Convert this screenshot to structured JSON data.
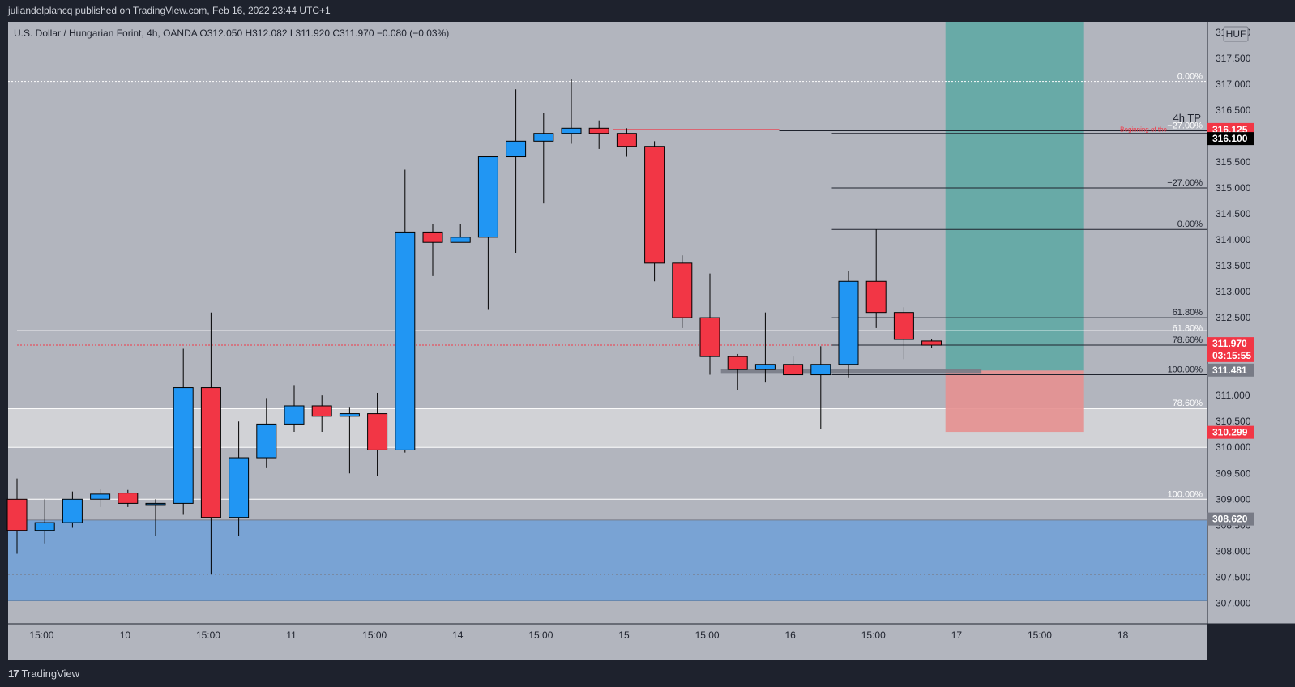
{
  "header": {
    "publisher_line": "juliandelplancq published on TradingView.com, Feb 16, 2022 23:44 UTC+1",
    "symbol_line": "U.S. Dollar / Hungarian Forint, 4h, OANDA  O312.050  H312.082  L311.920  C311.970  −0.080 (−0.03%)",
    "currency_label": "HUF"
  },
  "footer": {
    "logo_mark": "17",
    "brand": "TradingView"
  },
  "colors": {
    "background": "#b2b5be",
    "up": "#2196f3",
    "down": "#f23645",
    "frame": "#1e222d"
  },
  "chart_data": {
    "type": "candlestick",
    "symbol": "U.S. Dollar / Hungarian Forint",
    "timeframe": "4h",
    "exchange": "OANDA",
    "ylim": [
      306.6,
      318.2
    ],
    "y_ticks": [
      307.0,
      307.5,
      308.0,
      308.5,
      309.0,
      309.5,
      310.0,
      310.5,
      311.0,
      311.5,
      312.0,
      312.5,
      313.0,
      313.5,
      314.0,
      314.5,
      315.0,
      315.5,
      316.0,
      316.5,
      317.0,
      317.5,
      318.0
    ],
    "x_ticks": [
      "15:00",
      "10",
      "15:00",
      "11",
      "15:00",
      "14",
      "15:00",
      "15",
      "15:00",
      "16",
      "15:00",
      "17",
      "15:00",
      "18"
    ],
    "x_tick_bar_index": [
      0.89,
      3.9,
      6.9,
      9.9,
      12.9,
      15.9,
      18.9,
      21.9,
      24.9,
      27.9,
      30.9,
      33.9,
      36.9,
      39.9
    ],
    "candles": [
      {
        "o": 309.0,
        "h": 309.4,
        "l": 307.95,
        "c": 308.4
      },
      {
        "o": 308.4,
        "h": 309.0,
        "l": 308.15,
        "c": 308.55
      },
      {
        "o": 308.55,
        "h": 309.15,
        "l": 308.45,
        "c": 309.0
      },
      {
        "o": 309.0,
        "h": 309.2,
        "l": 308.85,
        "c": 309.1
      },
      {
        "o": 309.12,
        "h": 309.18,
        "l": 308.85,
        "c": 308.92
      },
      {
        "o": 308.9,
        "h": 309.0,
        "l": 308.3,
        "c": 308.92
      },
      {
        "o": 308.92,
        "h": 311.9,
        "l": 308.7,
        "c": 311.15
      },
      {
        "o": 311.15,
        "h": 312.6,
        "l": 307.55,
        "c": 308.65
      },
      {
        "o": 308.65,
        "h": 310.5,
        "l": 308.3,
        "c": 309.8
      },
      {
        "o": 309.8,
        "h": 310.95,
        "l": 309.6,
        "c": 310.45
      },
      {
        "o": 310.45,
        "h": 311.2,
        "l": 310.3,
        "c": 310.8
      },
      {
        "o": 310.8,
        "h": 311.0,
        "l": 310.3,
        "c": 310.6
      },
      {
        "o": 310.6,
        "h": 310.78,
        "l": 309.5,
        "c": 310.65
      },
      {
        "o": 310.65,
        "h": 311.05,
        "l": 309.45,
        "c": 309.95
      },
      {
        "o": 309.95,
        "h": 315.35,
        "l": 309.9,
        "c": 314.15
      },
      {
        "o": 314.15,
        "h": 314.3,
        "l": 313.3,
        "c": 313.95
      },
      {
        "o": 313.95,
        "h": 314.3,
        "l": 313.95,
        "c": 314.05
      },
      {
        "o": 314.05,
        "h": 315.6,
        "l": 312.65,
        "c": 315.6
      },
      {
        "o": 315.6,
        "h": 316.9,
        "l": 313.75,
        "c": 315.9
      },
      {
        "o": 315.9,
        "h": 316.45,
        "l": 314.7,
        "c": 316.05
      },
      {
        "o": 316.05,
        "h": 317.1,
        "l": 315.85,
        "c": 316.15
      },
      {
        "o": 316.15,
        "h": 316.3,
        "l": 315.75,
        "c": 316.05
      },
      {
        "o": 316.05,
        "h": 316.15,
        "l": 315.6,
        "c": 315.8
      },
      {
        "o": 315.8,
        "h": 315.9,
        "l": 313.2,
        "c": 313.55
      },
      {
        "o": 313.55,
        "h": 313.7,
        "l": 312.3,
        "c": 312.5
      },
      {
        "o": 312.5,
        "h": 313.35,
        "l": 311.4,
        "c": 311.75
      },
      {
        "o": 311.75,
        "h": 311.8,
        "l": 311.1,
        "c": 311.5
      },
      {
        "o": 311.5,
        "h": 312.6,
        "l": 311.25,
        "c": 311.6
      },
      {
        "o": 311.6,
        "h": 311.75,
        "l": 311.4,
        "c": 311.4
      },
      {
        "o": 311.4,
        "h": 311.95,
        "l": 310.35,
        "c": 311.6
      },
      {
        "o": 311.6,
        "h": 313.4,
        "l": 311.35,
        "c": 313.2
      },
      {
        "o": 313.2,
        "h": 314.2,
        "l": 312.3,
        "c": 312.6
      },
      {
        "o": 312.6,
        "h": 312.7,
        "l": 311.7,
        "c": 312.08
      },
      {
        "o": 312.05,
        "h": 312.082,
        "l": 311.92,
        "c": 311.97
      }
    ],
    "price_scale_labels": [
      {
        "text": "316.125",
        "price": 316.125,
        "bg": "#f23645",
        "fg": "#ffffff"
      },
      {
        "text": "316.100",
        "price": 315.95,
        "bg": "#000000",
        "fg": "#ffffff"
      },
      {
        "text": "311.970",
        "price": 312.0,
        "bg": "#f23645",
        "fg": "#ffffff"
      },
      {
        "text": "03:15:55",
        "price": 311.77,
        "bg": "#f23645",
        "fg": "#ffffff"
      },
      {
        "text": "311.481",
        "price": 311.49,
        "bg": "#787b86",
        "fg": "#ffffff"
      },
      {
        "text": "310.299",
        "price": 310.29,
        "bg": "#f23645",
        "fg": "#ffffff"
      },
      {
        "text": "308.620",
        "price": 308.62,
        "bg": "#787b86",
        "fg": "#ffffff"
      }
    ],
    "annotations": {
      "zones": [
        {
          "kind": "demand",
          "top": 308.6,
          "bottom": 307.05,
          "fill": "#6fa0d8"
        },
        {
          "kind": "supply",
          "top": 310.75,
          "bottom": 310.0,
          "fill": "#d6d7da"
        }
      ],
      "position": {
        "entry": 311.481,
        "target": 318.2,
        "stop": 310.299,
        "start_bar": 33.5,
        "end_bar": 38.5,
        "profit_fill": "#5fa9a4",
        "loss_fill": "#e59090"
      },
      "fib_levels": [
        {
          "label": "0.00%",
          "price": 317.05,
          "color": "#ffffff",
          "start_bar": 0
        },
        {
          "label": "78.60%",
          "price": 310.75,
          "color": "#ffffff",
          "start_bar": 0
        },
        {
          "label": "100.00%",
          "price": 309.0,
          "color": "#ffffff",
          "start_bar": 0
        },
        {
          "label": "−27.00%",
          "price": 315.0,
          "color": "#1e222d",
          "start_bar": 29.4
        },
        {
          "label": "0.00%",
          "price": 314.2,
          "color": "#1e222d",
          "start_bar": 29.4
        },
        {
          "label": "61.80%",
          "price": 312.5,
          "color": "#1e222d",
          "start_bar": 29.4
        },
        {
          "label": "78.60%",
          "price": 311.97,
          "color": "#1e222d",
          "start_bar": 29.4
        },
        {
          "label": "100.00%",
          "price": 311.4,
          "color": "#1e222d",
          "start_bar": 29.4
        },
        {
          "label": "61.80%",
          "price": 312.2,
          "color": "#ffffff",
          "start_bar": null
        },
        {
          "label": "−27.00%",
          "price": 316.1,
          "color": "#ffffff",
          "start_bar": null
        }
      ],
      "texts": [
        {
          "text": "4h TP",
          "price": 316.25,
          "color": "#1e222d"
        },
        {
          "text": "Beginning of the",
          "price": 316.05,
          "color": "#f23645"
        }
      ],
      "lines": [
        {
          "price": 316.125,
          "start_bar": 21.5,
          "end_bar": 27.5,
          "color": "#f23645"
        },
        {
          "price": 316.1,
          "start_bar": 27.5,
          "end_bar": 44,
          "color": "#1e222d"
        },
        {
          "price": 316.05,
          "start_bar": 29.4,
          "end_bar": 44,
          "color": "#1e222d"
        },
        {
          "price": 311.97,
          "start_bar": 0,
          "end_bar": 44,
          "color": "#f23645",
          "dotted": true
        },
        {
          "price": 312.25,
          "start_bar": 0,
          "end_bar": 44,
          "color": "#ffffff"
        },
        {
          "price": 308.6,
          "start_bar": 0,
          "end_bar": 44,
          "color": "#787b86"
        }
      ]
    }
  }
}
